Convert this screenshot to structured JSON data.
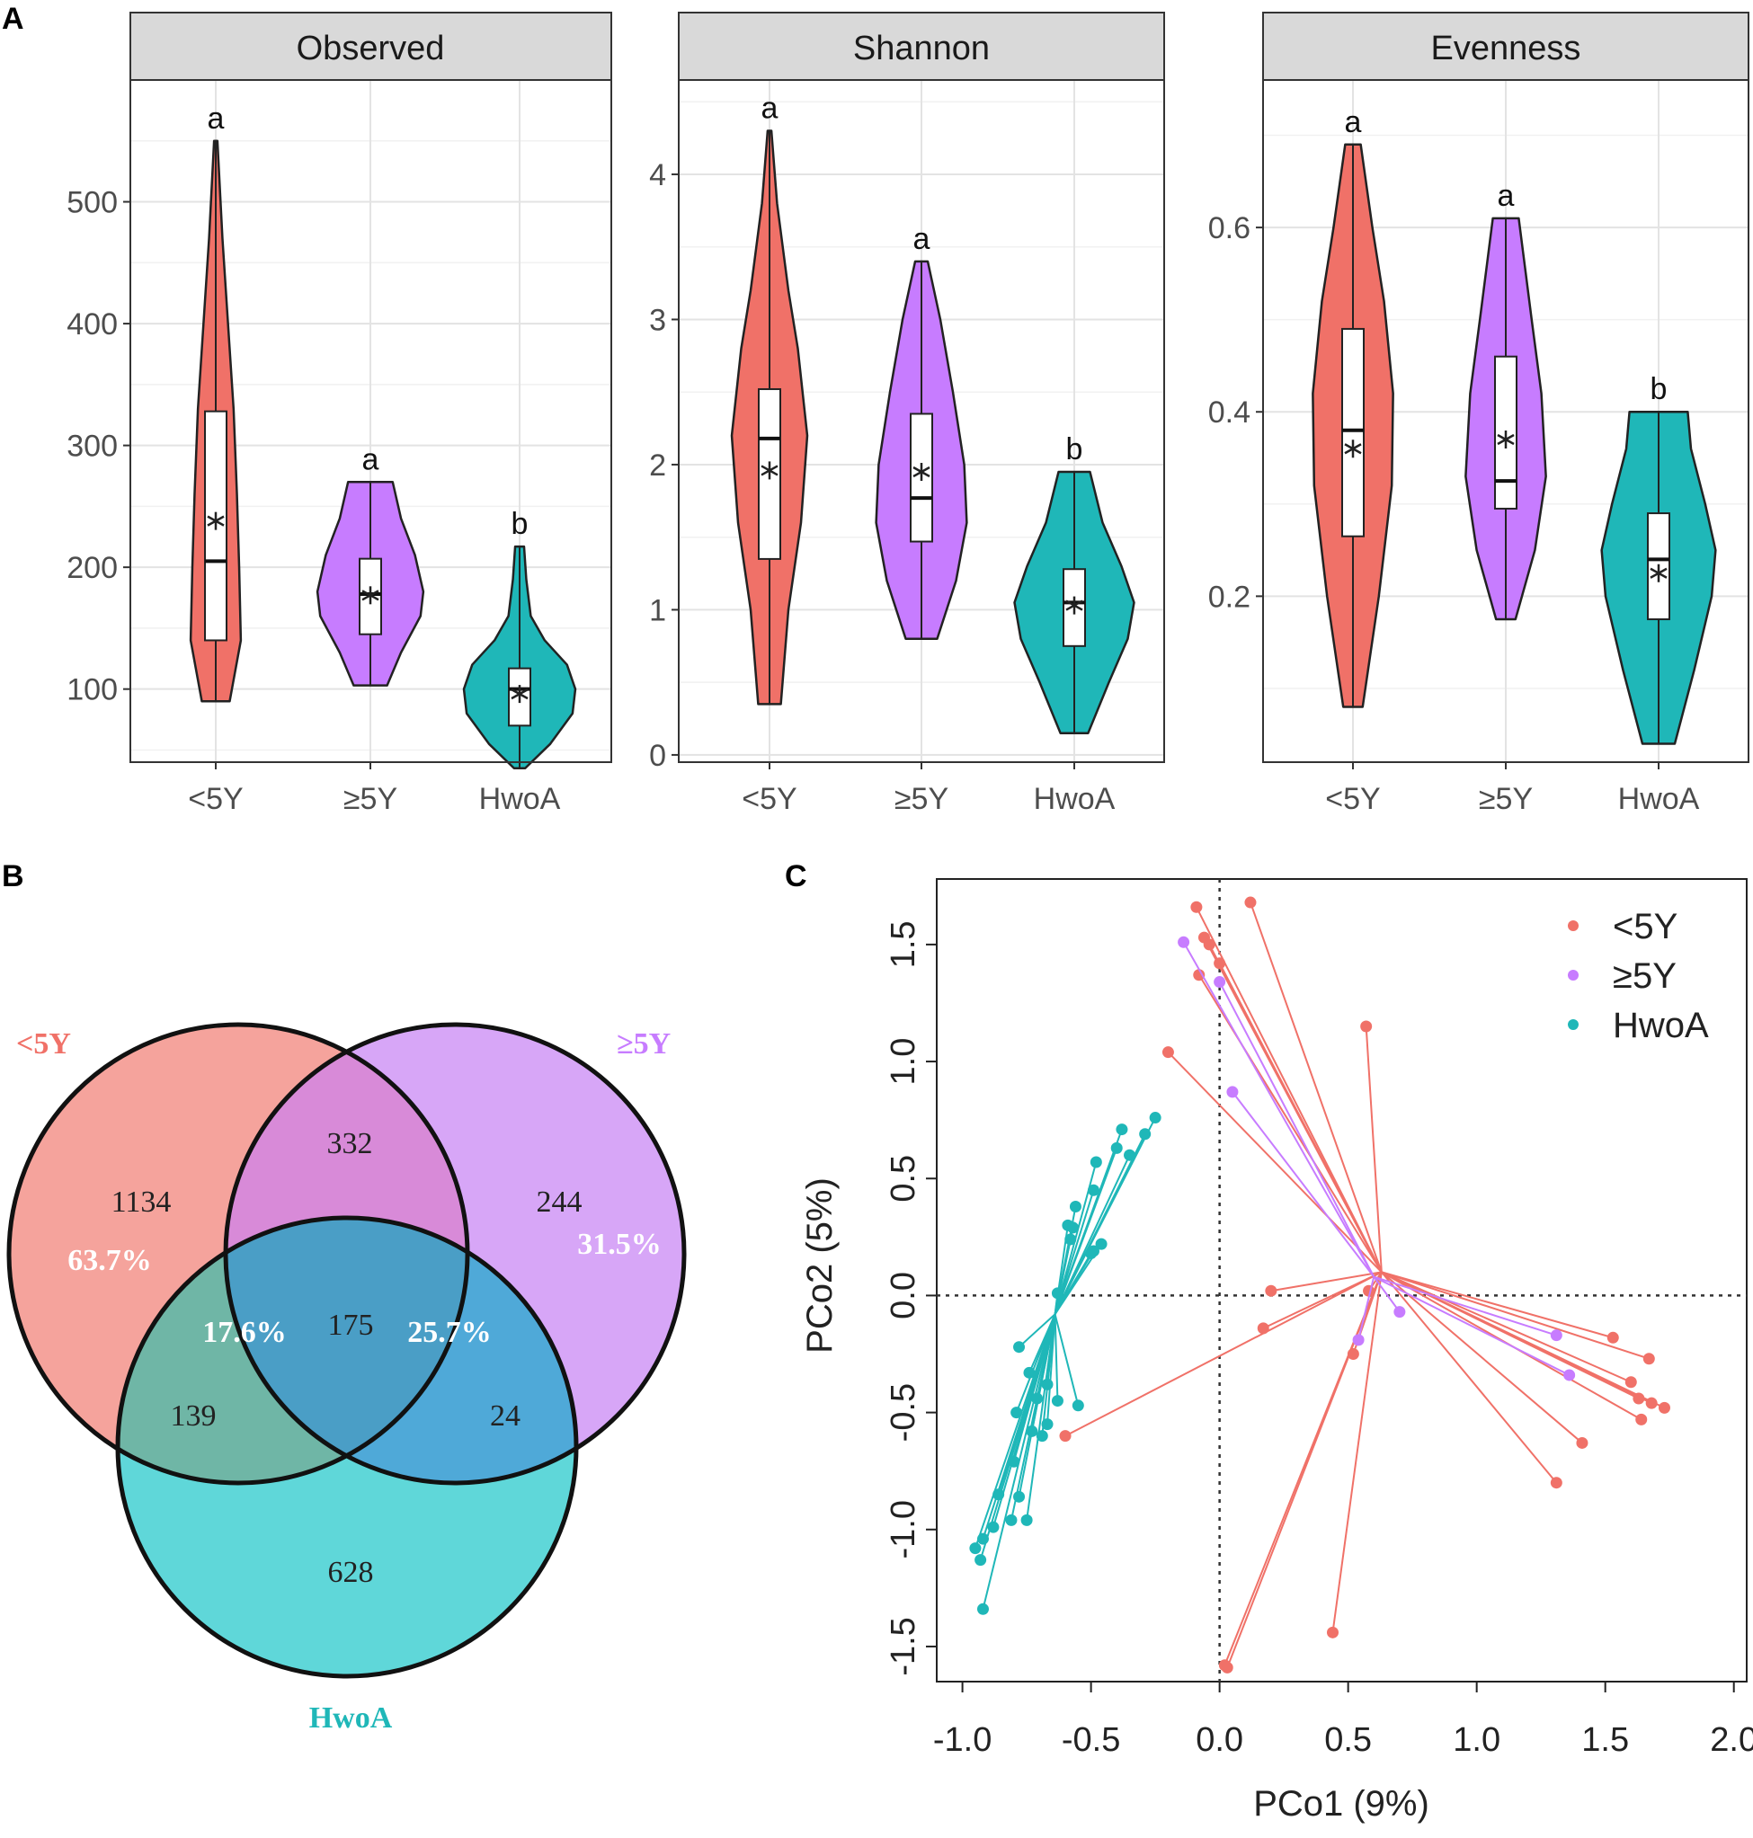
{
  "colors": {
    "lt5Y": "#f07168",
    "ge5Y": "#c77cff",
    "HwoA": "#1fb7b8",
    "strip_bg": "#d9d9d9"
  },
  "panel_labels": {
    "A": "A",
    "B": "B",
    "C": "C"
  },
  "chart_data": [
    {
      "type": "violin",
      "facet": "Observed",
      "categories": [
        "<5Y",
        "≥5Y",
        "HwoA"
      ],
      "yticks": [
        100,
        200,
        300,
        400,
        500
      ],
      "ylim": [
        40,
        600
      ],
      "groups": [
        {
          "name": "<5Y",
          "min": 90,
          "max": 550,
          "q1": 140,
          "median": 205,
          "q3": 328,
          "mean": 238,
          "sig": "a",
          "profile": [
            [
              90,
              0.25
            ],
            [
              140,
              0.45
            ],
            [
              200,
              0.42
            ],
            [
              260,
              0.38
            ],
            [
              330,
              0.32
            ],
            [
              400,
              0.22
            ],
            [
              470,
              0.12
            ],
            [
              550,
              0.03
            ]
          ]
        },
        {
          "name": "≥5Y",
          "min": 103,
          "max": 270,
          "q1": 145,
          "median": 178,
          "q3": 207,
          "mean": 177,
          "sig": "a",
          "profile": [
            [
              103,
              0.3
            ],
            [
              130,
              0.55
            ],
            [
              160,
              0.9
            ],
            [
              180,
              0.95
            ],
            [
              210,
              0.8
            ],
            [
              240,
              0.55
            ],
            [
              270,
              0.4
            ]
          ]
        },
        {
          "name": "HwoA",
          "min": 35,
          "max": 217,
          "q1": 70,
          "median": 100,
          "q3": 117,
          "mean": 96,
          "sig": "b",
          "profile": [
            [
              35,
              0.1
            ],
            [
              55,
              0.55
            ],
            [
              80,
              0.95
            ],
            [
              100,
              1.0
            ],
            [
              120,
              0.85
            ],
            [
              140,
              0.45
            ],
            [
              160,
              0.2
            ],
            [
              190,
              0.12
            ],
            [
              217,
              0.08
            ]
          ]
        }
      ]
    },
    {
      "type": "violin",
      "facet": "Shannon",
      "categories": [
        "<5Y",
        "≥5Y",
        "HwoA"
      ],
      "yticks": [
        0,
        1,
        2,
        3,
        4
      ],
      "ylim": [
        -0.05,
        4.65
      ],
      "groups": [
        {
          "name": "<5Y",
          "min": 0.35,
          "max": 4.3,
          "q1": 1.35,
          "median": 2.18,
          "q3": 2.52,
          "mean": 1.96,
          "sig": "a",
          "profile": [
            [
              0.35,
              0.18
            ],
            [
              1.0,
              0.3
            ],
            [
              1.6,
              0.5
            ],
            [
              2.2,
              0.6
            ],
            [
              2.8,
              0.45
            ],
            [
              3.2,
              0.3
            ],
            [
              3.8,
              0.12
            ],
            [
              4.3,
              0.03
            ]
          ]
        },
        {
          "name": "≥5Y",
          "min": 0.8,
          "max": 3.4,
          "q1": 1.47,
          "median": 1.77,
          "q3": 2.35,
          "mean": 1.95,
          "sig": "a",
          "profile": [
            [
              0.8,
              0.25
            ],
            [
              1.2,
              0.55
            ],
            [
              1.6,
              0.72
            ],
            [
              2.0,
              0.68
            ],
            [
              2.5,
              0.5
            ],
            [
              3.0,
              0.3
            ],
            [
              3.4,
              0.1
            ]
          ]
        },
        {
          "name": "HwoA",
          "min": 0.15,
          "max": 1.95,
          "q1": 0.75,
          "median": 1.05,
          "q3": 1.28,
          "mean": 1.03,
          "sig": "b",
          "profile": [
            [
              0.15,
              0.22
            ],
            [
              0.5,
              0.55
            ],
            [
              0.8,
              0.85
            ],
            [
              1.05,
              0.95
            ],
            [
              1.3,
              0.75
            ],
            [
              1.6,
              0.45
            ],
            [
              1.95,
              0.25
            ]
          ]
        }
      ]
    },
    {
      "type": "violin",
      "facet": "Evenness",
      "categories": [
        "<5Y",
        "≥5Y",
        "HwoA"
      ],
      "yticks": [
        0.2,
        0.4,
        0.6
      ],
      "ylim": [
        0.02,
        0.76
      ],
      "groups": [
        {
          "name": "<5Y",
          "min": 0.08,
          "max": 0.69,
          "q1": 0.265,
          "median": 0.38,
          "q3": 0.49,
          "mean": 0.36,
          "sig": "a",
          "profile": [
            [
              0.08,
              0.15
            ],
            [
              0.2,
              0.4
            ],
            [
              0.32,
              0.6
            ],
            [
              0.42,
              0.62
            ],
            [
              0.52,
              0.48
            ],
            [
              0.6,
              0.3
            ],
            [
              0.69,
              0.12
            ]
          ]
        },
        {
          "name": "≥5Y",
          "min": 0.175,
          "max": 0.61,
          "q1": 0.295,
          "median": 0.325,
          "q3": 0.46,
          "mean": 0.37,
          "sig": "a",
          "profile": [
            [
              0.175,
              0.15
            ],
            [
              0.25,
              0.45
            ],
            [
              0.33,
              0.62
            ],
            [
              0.42,
              0.55
            ],
            [
              0.5,
              0.4
            ],
            [
              0.61,
              0.2
            ]
          ]
        },
        {
          "name": "HwoA",
          "min": 0.04,
          "max": 0.4,
          "q1": 0.175,
          "median": 0.24,
          "q3": 0.29,
          "mean": 0.225,
          "sig": "b",
          "profile": [
            [
              0.04,
              0.25
            ],
            [
              0.12,
              0.55
            ],
            [
              0.2,
              0.82
            ],
            [
              0.25,
              0.88
            ],
            [
              0.3,
              0.72
            ],
            [
              0.36,
              0.5
            ],
            [
              0.4,
              0.45
            ]
          ]
        }
      ]
    },
    {
      "type": "venn",
      "sets": [
        "<5Y",
        "≥5Y",
        "HwoA"
      ],
      "regions": {
        "lt5Y_only": "1134",
        "ge5Y_only": "244",
        "HwoA_only": "628",
        "lt5Y_ge5Y": "332",
        "lt5Y_HwoA": "139",
        "ge5Y_HwoA": "24",
        "all": "175"
      },
      "percentages": {
        "lt5Y": "63.7%",
        "ge5Y": "31.5%",
        "left_lens": "17.6%",
        "right_lens": "25.7%"
      }
    },
    {
      "type": "scatter",
      "subtype": "PCoA spider plot",
      "xlabel": "PCo1 (9%)",
      "ylabel": "PCo2 (5%)",
      "xlim": [
        -1.1,
        2.05
      ],
      "ylim": [
        -1.65,
        1.78
      ],
      "xticks": [
        -1.0,
        -0.5,
        0.0,
        0.5,
        1.0,
        1.5,
        2.0
      ],
      "yticks": [
        -1.5,
        -1.0,
        -0.5,
        0.0,
        0.5,
        1.0,
        1.5
      ],
      "legend": {
        "position": "top-right",
        "entries": [
          "<5Y",
          "≥5Y",
          "HwoA"
        ]
      },
      "series": [
        {
          "name": "<5Y",
          "centroid": [
            0.63,
            0.1
          ],
          "points": [
            [
              -0.09,
              1.66
            ],
            [
              0.12,
              1.68
            ],
            [
              -0.06,
              1.53
            ],
            [
              -0.04,
              1.5
            ],
            [
              -0.08,
              1.37
            ],
            [
              0.0,
              1.42
            ],
            [
              0.57,
              1.15
            ],
            [
              -0.2,
              1.04
            ],
            [
              0.2,
              0.02
            ],
            [
              0.17,
              -0.14
            ],
            [
              0.52,
              -0.25
            ],
            [
              0.58,
              0.02
            ],
            [
              1.53,
              -0.18
            ],
            [
              1.67,
              -0.27
            ],
            [
              1.6,
              -0.37
            ],
            [
              1.63,
              -0.44
            ],
            [
              1.68,
              -0.46
            ],
            [
              1.73,
              -0.48
            ],
            [
              1.64,
              -0.53
            ],
            [
              1.41,
              -0.63
            ],
            [
              1.31,
              -0.8
            ],
            [
              -0.6,
              -0.6
            ],
            [
              0.44,
              -1.44
            ],
            [
              0.02,
              -1.58
            ],
            [
              0.03,
              -1.59
            ]
          ]
        },
        {
          "name": "≥5Y",
          "centroid": [
            0.6,
            0.08
          ],
          "points": [
            [
              -0.14,
              1.51
            ],
            [
              0.0,
              1.34
            ],
            [
              0.05,
              0.87
            ],
            [
              0.54,
              -0.19
            ],
            [
              0.7,
              -0.07
            ],
            [
              1.31,
              -0.17
            ],
            [
              1.36,
              -0.34
            ]
          ]
        },
        {
          "name": "HwoA",
          "centroid": [
            -0.64,
            -0.08
          ],
          "points": [
            [
              -0.25,
              0.76
            ],
            [
              -0.29,
              0.69
            ],
            [
              -0.38,
              0.71
            ],
            [
              -0.35,
              0.6
            ],
            [
              -0.4,
              0.63
            ],
            [
              -0.48,
              0.57
            ],
            [
              -0.49,
              0.45
            ],
            [
              -0.56,
              0.38
            ],
            [
              -0.59,
              0.3
            ],
            [
              -0.57,
              0.29
            ],
            [
              -0.58,
              0.24
            ],
            [
              -0.46,
              0.22
            ],
            [
              -0.49,
              0.19
            ],
            [
              -0.5,
              0.18
            ],
            [
              -0.63,
              0.01
            ],
            [
              -0.78,
              -0.22
            ],
            [
              -0.74,
              -0.33
            ],
            [
              -0.67,
              -0.38
            ],
            [
              -0.71,
              -0.44
            ],
            [
              -0.63,
              -0.45
            ],
            [
              -0.55,
              -0.47
            ],
            [
              -0.79,
              -0.5
            ],
            [
              -0.67,
              -0.55
            ],
            [
              -0.73,
              -0.58
            ],
            [
              -0.69,
              -0.6
            ],
            [
              -0.8,
              -0.71
            ],
            [
              -0.86,
              -0.85
            ],
            [
              -0.78,
              -0.86
            ],
            [
              -0.81,
              -0.96
            ],
            [
              -0.88,
              -0.99
            ],
            [
              -0.92,
              -1.04
            ],
            [
              -0.75,
              -0.96
            ],
            [
              -0.95,
              -1.08
            ],
            [
              -0.93,
              -1.13
            ],
            [
              -0.92,
              -1.34
            ]
          ]
        }
      ]
    }
  ]
}
